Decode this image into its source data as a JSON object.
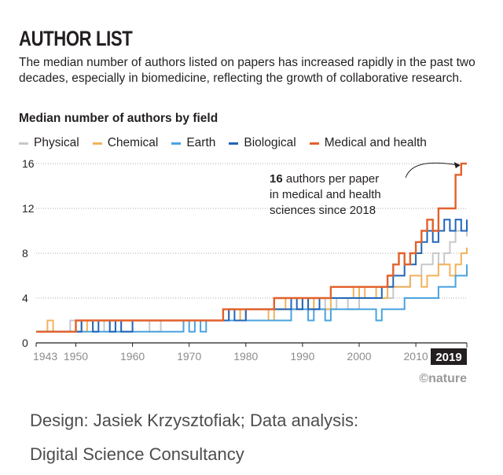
{
  "header": {
    "title": "AUTHOR LIST",
    "subtitle": "The median number of authors listed on papers has increased rapidly in the past two decades, especially in biomedicine, reflecting the growth of collaborative research."
  },
  "chart_data": {
    "type": "line",
    "step": true,
    "title": "Median number of authors by field",
    "xlabel": "",
    "ylabel": "",
    "xlim": [
      1943,
      2019
    ],
    "ylim": [
      0,
      16
    ],
    "x_ticks": [
      "1943",
      "1950",
      "1960",
      "1970",
      "1980",
      "1990",
      "2000",
      "2010"
    ],
    "x_end_label": "2019",
    "y_ticks": [
      "0",
      "4",
      "8",
      "12",
      "16"
    ],
    "grid": true,
    "legend_position": "top",
    "series": [
      {
        "name": "Physical",
        "color": "#c7c8ca",
        "x": [
          1943,
          1948,
          1949,
          1950,
          1951,
          1955,
          1956,
          1957,
          1958,
          1962,
          1963,
          1965,
          1966,
          1968,
          1969,
          1972,
          1973,
          1974,
          1977,
          1979,
          1980,
          1981,
          1985,
          1987,
          1988,
          1990,
          1992,
          1994,
          1996,
          1998,
          2000,
          2002,
          2004,
          2005,
          2006,
          2007,
          2008,
          2009,
          2010,
          2011,
          2012,
          2013,
          2014,
          2015,
          2016,
          2017,
          2018,
          2019
        ],
        "values": [
          1,
          1,
          2,
          1,
          2,
          1,
          2,
          1,
          2,
          2,
          1,
          2,
          2,
          2,
          2,
          2,
          2,
          2,
          3,
          2,
          3,
          3,
          3,
          3,
          4,
          3,
          4,
          3,
          4,
          3,
          4,
          4,
          4,
          4,
          5,
          5,
          5,
          6,
          6,
          7,
          7,
          8,
          7,
          8,
          9,
          10,
          10,
          9.5
        ]
      },
      {
        "name": "Chemical",
        "color": "#f2b25c",
        "x": [
          1943,
          1945,
          1946,
          1947,
          1950,
          1951,
          1952,
          1953,
          1955,
          1957,
          1958,
          1960,
          1962,
          1965,
          1968,
          1970,
          1973,
          1975,
          1977,
          1979,
          1980,
          1982,
          1984,
          1985,
          1987,
          1988,
          1990,
          1991,
          1992,
          1993,
          1995,
          1997,
          1998,
          1999,
          2000,
          2001,
          2003,
          2005,
          2007,
          2009,
          2011,
          2012,
          2013,
          2014,
          2015,
          2016,
          2017,
          2018,
          2019
        ],
        "values": [
          1,
          2,
          1,
          1,
          2,
          1,
          2,
          2,
          2,
          2,
          2,
          2,
          2,
          2,
          2,
          2,
          2,
          2,
          3,
          2,
          3,
          3,
          2,
          3,
          4,
          3,
          4,
          3,
          4,
          3,
          4,
          4,
          4,
          5,
          4,
          5,
          4,
          5,
          5,
          6,
          5,
          6,
          6,
          7,
          7,
          6,
          7,
          8,
          8.5
        ]
      },
      {
        "name": "Earth",
        "color": "#4aa3df",
        "x": [
          1943,
          1948,
          1949,
          1950,
          1951,
          1953,
          1955,
          1957,
          1958,
          1962,
          1963,
          1967,
          1968,
          1969,
          1970,
          1971,
          1972,
          1973,
          1976,
          1977,
          1980,
          1985,
          1986,
          1987,
          1988,
          1990,
          1991,
          1992,
          1993,
          1994,
          1995,
          1998,
          2000,
          2002,
          2003,
          2004,
          2006,
          2008,
          2010,
          2012,
          2014,
          2015,
          2016,
          2017,
          2018,
          2019
        ],
        "values": [
          1,
          1,
          1,
          1,
          1,
          1,
          1,
          1,
          1,
          1,
          1,
          1,
          1,
          2,
          1,
          2,
          1,
          2,
          2,
          2,
          2,
          2,
          2,
          2,
          3,
          3,
          2,
          3,
          3,
          2,
          3,
          3,
          3,
          3,
          2,
          3,
          3,
          4,
          4,
          4,
          5,
          5,
          5,
          6,
          6,
          7
        ]
      },
      {
        "name": "Biological",
        "color": "#2166b8",
        "x": [
          1943,
          1950,
          1951,
          1953,
          1954,
          1956,
          1957,
          1958,
          1960,
          1962,
          1965,
          1970,
          1975,
          1977,
          1978,
          1980,
          1982,
          1984,
          1985,
          1987,
          1988,
          1989,
          1990,
          1991,
          1993,
          1995,
          1997,
          1998,
          2000,
          2002,
          2004,
          2005,
          2006,
          2007,
          2008,
          2009,
          2010,
          2011,
          2012,
          2013,
          2014,
          2015,
          2016,
          2017,
          2018,
          2019
        ],
        "values": [
          1,
          1,
          2,
          1,
          2,
          1,
          2,
          1,
          2,
          2,
          2,
          2,
          2,
          3,
          2,
          3,
          3,
          3,
          3,
          3,
          4,
          3,
          4,
          3,
          4,
          4,
          4,
          4,
          4,
          4,
          5,
          5,
          6,
          6,
          7,
          7,
          8,
          9,
          10,
          9,
          10,
          11,
          10,
          11,
          10,
          11
        ]
      },
      {
        "name": "Medical and health",
        "color": "#e2612b",
        "x": [
          1943,
          1950,
          1954,
          1960,
          1965,
          1970,
          1976,
          1978,
          1980,
          1983,
          1985,
          1988,
          1990,
          1992,
          1995,
          1998,
          2000,
          2002,
          2003,
          2004,
          2005,
          2006,
          2007,
          2008,
          2009,
          2010,
          2011,
          2012,
          2013,
          2014,
          2015,
          2016,
          2017,
          2018,
          2019
        ],
        "values": [
          1,
          2,
          2,
          2,
          2,
          2,
          3,
          3,
          3,
          3,
          4,
          4,
          4,
          4,
          5,
          5,
          5,
          5,
          5,
          5,
          6,
          7,
          8,
          7,
          8,
          9,
          10,
          11,
          10,
          12,
          12,
          12,
          15,
          16,
          16
        ]
      }
    ],
    "annotation": {
      "bold": "16",
      "text": " authors per paper",
      "line2": "in medical and health",
      "line3": "sciences since 2018",
      "target_x": 2018,
      "target_y": 16
    }
  },
  "footer": {
    "nature_logo": "©nature",
    "credit_line1": "Design: Jasiek Krzysztofiak; Data analysis:",
    "credit_line2": "Digital Science Consultancy"
  }
}
